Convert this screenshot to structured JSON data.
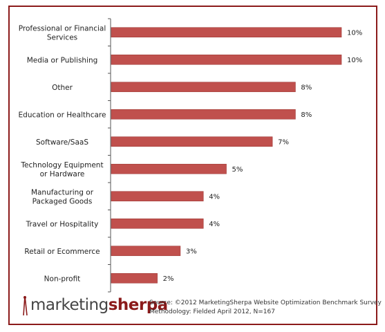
{
  "chart_data": {
    "type": "bar",
    "orientation": "horizontal",
    "categories": [
      "Professional or Financial Services",
      "Media or Publishing",
      "Other",
      "Education or Healthcare",
      "Software/SaaS",
      "Technology Equipment or Hardware",
      "Manufacturing or Packaged Goods",
      "Travel or Hospitality",
      "Retail or Ecommerce",
      "Non-profit"
    ],
    "category_lines": [
      [
        "Professional or Financial",
        "Services"
      ],
      [
        "Media or Publishing"
      ],
      [
        "Other"
      ],
      [
        "Education or Healthcare"
      ],
      [
        "Software/SaaS"
      ],
      [
        "Technology Equipment",
        "or Hardware"
      ],
      [
        "Manufacturing or",
        "Packaged Goods"
      ],
      [
        "Travel or Hospitality"
      ],
      [
        "Retail or Ecommerce"
      ],
      [
        "Non-profit"
      ]
    ],
    "values": [
      10,
      10,
      8,
      8,
      7,
      5,
      4,
      4,
      3,
      2
    ],
    "value_labels": [
      "10%",
      "10%",
      "8%",
      "8%",
      "7%",
      "5%",
      "4%",
      "4%",
      "3%",
      "2%"
    ],
    "xlim": [
      0,
      10
    ],
    "grid": false,
    "bar_color": "#c0504d"
  },
  "footer": {
    "logo_marketing": "marketing",
    "logo_sherpa": "sherpa",
    "source_line": "Source: ©2012 MarketingSherpa Website Optimization Benchmark Survey",
    "methodology_line": "Methodology: Fielded April 2012, N=167"
  },
  "colors": {
    "frame": "#8b1a1a",
    "axis": "#444444",
    "brand": "#8b1a1a"
  }
}
